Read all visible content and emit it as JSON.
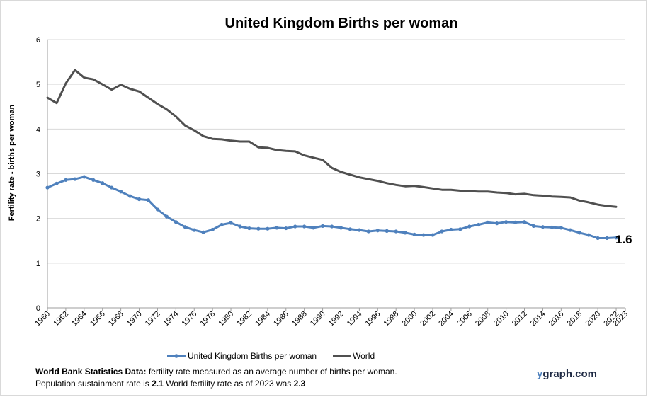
{
  "chart_data": {
    "type": "line",
    "title": "United Kingdom Births per woman",
    "ylabel": "Fertility rate  - births per woman",
    "xlabel": "",
    "ylim": [
      0,
      6
    ],
    "xlim": [
      1960,
      2023
    ],
    "yticks": [
      "0",
      "1",
      "2",
      "3",
      "4",
      "5",
      "6"
    ],
    "xticks": [
      "1960",
      "1962",
      "1964",
      "1966",
      "1968",
      "1970",
      "1972",
      "1974",
      "1976",
      "1978",
      "1980",
      "1982",
      "1984",
      "1986",
      "1988",
      "1990",
      "1992",
      "1994",
      "1996",
      "1998",
      "2000",
      "2002",
      "2004",
      "2006",
      "2008",
      "2010",
      "2012",
      "2014",
      "2016",
      "2018",
      "2020",
      "2022",
      "2023"
    ],
    "grid": "horizontal",
    "legend": "bottom",
    "end_label": "1.6",
    "series": [
      {
        "name": "United Kingdom Births per woman",
        "color": "#4f81bd",
        "markers": true,
        "x": [
          1960,
          1961,
          1962,
          1963,
          1964,
          1965,
          1966,
          1967,
          1968,
          1969,
          1970,
          1971,
          1972,
          1973,
          1974,
          1975,
          1976,
          1977,
          1978,
          1979,
          1980,
          1981,
          1982,
          1983,
          1984,
          1985,
          1986,
          1987,
          1988,
          1989,
          1990,
          1991,
          1992,
          1993,
          1994,
          1995,
          1996,
          1997,
          1998,
          1999,
          2000,
          2001,
          2002,
          2003,
          2004,
          2005,
          2006,
          2007,
          2008,
          2009,
          2010,
          2011,
          2012,
          2013,
          2014,
          2015,
          2016,
          2017,
          2018,
          2019,
          2020,
          2021,
          2022
        ],
        "values": [
          2.69,
          2.78,
          2.86,
          2.88,
          2.93,
          2.86,
          2.79,
          2.69,
          2.6,
          2.5,
          2.43,
          2.41,
          2.2,
          2.04,
          1.92,
          1.81,
          1.74,
          1.69,
          1.75,
          1.86,
          1.9,
          1.82,
          1.78,
          1.77,
          1.77,
          1.79,
          1.78,
          1.82,
          1.82,
          1.79,
          1.83,
          1.82,
          1.79,
          1.76,
          1.74,
          1.71,
          1.73,
          1.72,
          1.71,
          1.68,
          1.64,
          1.63,
          1.63,
          1.71,
          1.75,
          1.76,
          1.82,
          1.86,
          1.91,
          1.89,
          1.92,
          1.91,
          1.92,
          1.83,
          1.81,
          1.8,
          1.79,
          1.74,
          1.68,
          1.63,
          1.56,
          1.56,
          1.57
        ]
      },
      {
        "name": "World",
        "color": "#505050",
        "markers": false,
        "x": [
          1960,
          1961,
          1962,
          1963,
          1964,
          1965,
          1966,
          1967,
          1968,
          1969,
          1970,
          1971,
          1972,
          1973,
          1974,
          1975,
          1976,
          1977,
          1978,
          1979,
          1980,
          1981,
          1982,
          1983,
          1984,
          1985,
          1986,
          1987,
          1988,
          1989,
          1990,
          1991,
          1992,
          1993,
          1994,
          1995,
          1996,
          1997,
          1998,
          1999,
          2000,
          2001,
          2002,
          2003,
          2004,
          2005,
          2006,
          2007,
          2008,
          2009,
          2010,
          2011,
          2012,
          2013,
          2014,
          2015,
          2016,
          2017,
          2018,
          2019,
          2020,
          2021,
          2022
        ],
        "values": [
          4.7,
          4.58,
          5.02,
          5.32,
          5.15,
          5.11,
          5.0,
          4.88,
          4.99,
          4.9,
          4.84,
          4.7,
          4.56,
          4.44,
          4.28,
          4.08,
          3.97,
          3.84,
          3.78,
          3.77,
          3.74,
          3.72,
          3.72,
          3.59,
          3.58,
          3.53,
          3.51,
          3.5,
          3.41,
          3.36,
          3.31,
          3.13,
          3.04,
          2.98,
          2.92,
          2.88,
          2.84,
          2.79,
          2.75,
          2.72,
          2.73,
          2.7,
          2.67,
          2.64,
          2.64,
          2.62,
          2.61,
          2.6,
          2.6,
          2.58,
          2.57,
          2.54,
          2.55,
          2.52,
          2.51,
          2.49,
          2.48,
          2.47,
          2.4,
          2.36,
          2.31,
          2.28,
          2.26
        ]
      }
    ]
  },
  "footnote": {
    "line1_bold": "World Bank Statistics Data:",
    "line1_text": " fertility rate measured as an average number  of births per woman.",
    "line2_text_a": "Population sustainment rate is ",
    "line2_bold_a": "2.1",
    "line2_text_b": "    World fertility rate as of 2023 was ",
    "line2_bold_b": "2.3"
  },
  "brand": {
    "first": "y",
    "rest": "graph.com"
  }
}
